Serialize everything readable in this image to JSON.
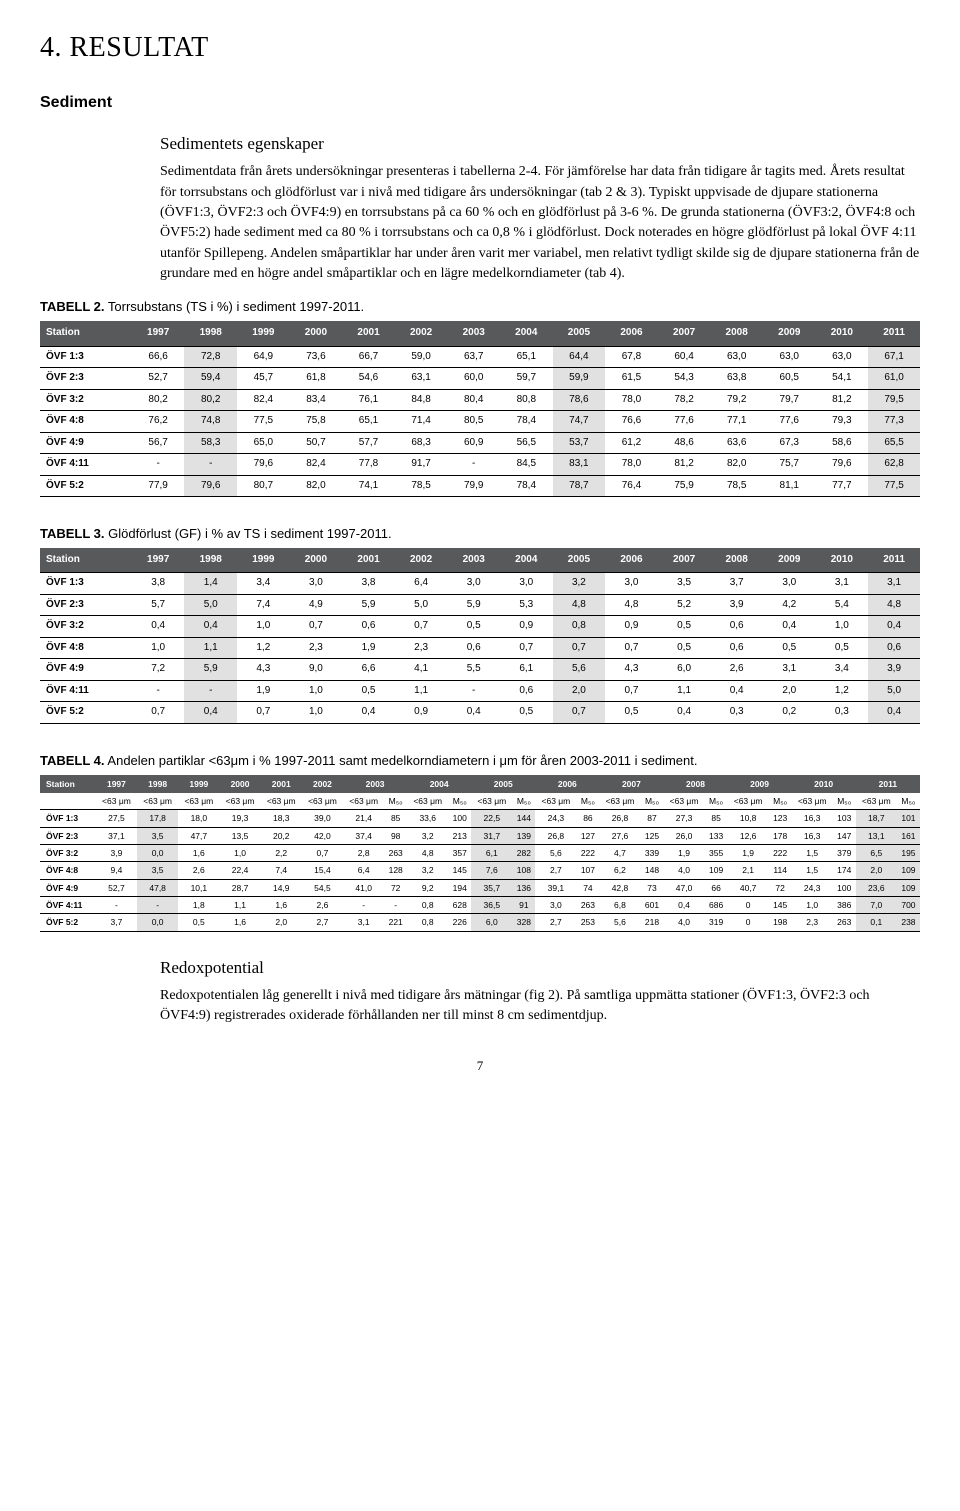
{
  "page_title": "4. RESULTAT",
  "section_sediment": "Sediment",
  "sub_sedimentets": "Sedimentets egenskaper",
  "para1": "Sedimentdata från årets undersökningar presenteras i tabellerna 2-4. För jämförelse har data från tidigare år tagits med. Årets resultat för torrsubstans och glödförlust var i nivå med tidigare års undersökningar (tab 2 & 3). Typiskt uppvisade de djupare stationerna (ÖVF1:3, ÖVF2:3 och ÖVF4:9) en torrsubstans på ca 60 % och en glödförlust på 3-6 %. De grunda stationerna (ÖVF3:2, ÖVF4:8 och ÖVF5:2) hade sediment med ca 80 % i torrsubstans och ca 0,8 % i glödförlust. Dock noterades en högre glödförlust på lokal ÖVF 4:11 utanför Spillepeng. Andelen småpartiklar har under åren varit mer variabel, men relativt tydligt skilde sig de djupare stationerna från de grundare med en högre andel småpartiklar och en lägre medelkorndiameter (tab 4).",
  "tab2_caption_b": "TABELL 2.",
  "tab2_caption": " Torrsubstans (TS i %) i sediment 1997-2011.",
  "tab3_caption_b": "TABELL 3.",
  "tab3_caption": " Glödförlust (GF) i % av TS i sediment 1997-2011.",
  "tab4_caption_b": "TABELL 4.",
  "tab4_caption": " Andelen partiklar <63μm i % 1997-2011 samt medelkorndiametern i μm för åren 2003-2011 i sediment.",
  "headers_years": [
    "Station",
    "1997",
    "1998",
    "1999",
    "2000",
    "2001",
    "2002",
    "2003",
    "2004",
    "2005",
    "2006",
    "2007",
    "2008",
    "2009",
    "2010",
    "2011"
  ],
  "tab2_rows": [
    [
      "ÖVF 1:3",
      "66,6",
      "72,8",
      "64,9",
      "73,6",
      "66,7",
      "59,0",
      "63,7",
      "65,1",
      "64,4",
      "67,8",
      "60,4",
      "63,0",
      "63,0",
      "63,0",
      "67,1"
    ],
    [
      "ÖVF 2:3",
      "52,7",
      "59,4",
      "45,7",
      "61,8",
      "54,6",
      "63,1",
      "60,0",
      "59,7",
      "59,9",
      "61,5",
      "54,3",
      "63,8",
      "60,5",
      "54,1",
      "61,0"
    ],
    [
      "ÖVF 3:2",
      "80,2",
      "80,2",
      "82,4",
      "83,4",
      "76,1",
      "84,8",
      "80,4",
      "80,8",
      "78,6",
      "78,0",
      "78,2",
      "79,2",
      "79,7",
      "81,2",
      "79,5"
    ],
    [
      "ÖVF 4:8",
      "76,2",
      "74,8",
      "77,5",
      "75,8",
      "65,1",
      "71,4",
      "80,5",
      "78,4",
      "74,7",
      "76,6",
      "77,6",
      "77,1",
      "77,6",
      "79,3",
      "77,3"
    ],
    [
      "ÖVF 4:9",
      "56,7",
      "58,3",
      "65,0",
      "50,7",
      "57,7",
      "68,3",
      "60,9",
      "56,5",
      "53,7",
      "61,2",
      "48,6",
      "63,6",
      "67,3",
      "58,6",
      "65,5"
    ],
    [
      "ÖVF 4:11",
      "-",
      "-",
      "79,6",
      "82,4",
      "77,8",
      "91,7",
      "-",
      "84,5",
      "83,1",
      "78,0",
      "81,2",
      "82,0",
      "75,7",
      "79,6",
      "62,8"
    ],
    [
      "ÖVF 5:2",
      "77,9",
      "79,6",
      "80,7",
      "82,0",
      "74,1",
      "78,5",
      "79,9",
      "78,4",
      "78,7",
      "76,4",
      "75,9",
      "78,5",
      "81,1",
      "77,7",
      "77,5"
    ]
  ],
  "tab3_rows": [
    [
      "ÖVF 1:3",
      "3,8",
      "1,4",
      "3,4",
      "3,0",
      "3,8",
      "6,4",
      "3,0",
      "3,0",
      "3,2",
      "3,0",
      "3,5",
      "3,7",
      "3,0",
      "3,1",
      "3,1"
    ],
    [
      "ÖVF 2:3",
      "5,7",
      "5,0",
      "7,4",
      "4,9",
      "5,9",
      "5,0",
      "5,9",
      "5,3",
      "4,8",
      "4,8",
      "5,2",
      "3,9",
      "4,2",
      "5,4",
      "4,8"
    ],
    [
      "ÖVF 3:2",
      "0,4",
      "0,4",
      "1,0",
      "0,7",
      "0,6",
      "0,7",
      "0,5",
      "0,9",
      "0,8",
      "0,9",
      "0,5",
      "0,6",
      "0,4",
      "1,0",
      "0,4"
    ],
    [
      "ÖVF 4:8",
      "1,0",
      "1,1",
      "1,2",
      "2,3",
      "1,9",
      "2,3",
      "0,6",
      "0,7",
      "0,7",
      "0,7",
      "0,5",
      "0,6",
      "0,5",
      "0,5",
      "0,6"
    ],
    [
      "ÖVF 4:9",
      "7,2",
      "5,9",
      "4,3",
      "9,0",
      "6,6",
      "4,1",
      "5,5",
      "6,1",
      "5,6",
      "4,3",
      "6,0",
      "2,6",
      "3,1",
      "3,4",
      "3,9"
    ],
    [
      "ÖVF 4:11",
      "-",
      "-",
      "1,9",
      "1,0",
      "0,5",
      "1,1",
      "-",
      "0,6",
      "2,0",
      "0,7",
      "1,1",
      "0,4",
      "2,0",
      "1,2",
      "5,0"
    ],
    [
      "ÖVF 5:2",
      "0,7",
      "0,4",
      "0,7",
      "1,0",
      "0,4",
      "0,9",
      "0,4",
      "0,5",
      "0,7",
      "0,5",
      "0,4",
      "0,3",
      "0,2",
      "0,3",
      "0,4"
    ]
  ],
  "tab4_sub1": "<63 μm",
  "tab4_sub2": "M₅₀",
  "tab4_rows": [
    [
      "ÖVF 1:3",
      "27,5",
      "17,8",
      "18,0",
      "19,3",
      "18,3",
      "39,0",
      "21,4",
      "85",
      "33,6",
      "100",
      "22,5",
      "144",
      "24,3",
      "86",
      "26,8",
      "87",
      "27,3",
      "85",
      "10,8",
      "123",
      "16,3",
      "103",
      "18,7",
      "101"
    ],
    [
      "ÖVF 2:3",
      "37,1",
      "3,5",
      "47,7",
      "13,5",
      "20,2",
      "42,0",
      "37,4",
      "98",
      "3,2",
      "213",
      "31,7",
      "139",
      "26,8",
      "127",
      "27,6",
      "125",
      "26,0",
      "133",
      "12,6",
      "178",
      "16,3",
      "147",
      "13,1",
      "161"
    ],
    [
      "ÖVF 3:2",
      "3,9",
      "0,0",
      "1,6",
      "1,0",
      "2,2",
      "0,7",
      "2,8",
      "263",
      "4,8",
      "357",
      "6,1",
      "282",
      "5,6",
      "222",
      "4,7",
      "339",
      "1,9",
      "355",
      "1,9",
      "222",
      "1,5",
      "379",
      "6,5",
      "195"
    ],
    [
      "ÖVF 4:8",
      "9,4",
      "3,5",
      "2,6",
      "22,4",
      "7,4",
      "15,4",
      "6,4",
      "128",
      "3,2",
      "145",
      "7,6",
      "108",
      "2,7",
      "107",
      "6,2",
      "148",
      "4,0",
      "109",
      "2,1",
      "114",
      "1,5",
      "174",
      "2,0",
      "109"
    ],
    [
      "ÖVF 4:9",
      "52,7",
      "47,8",
      "10,1",
      "28,7",
      "14,9",
      "54,5",
      "41,0",
      "72",
      "9,2",
      "194",
      "35,7",
      "136",
      "39,1",
      "74",
      "42,8",
      "73",
      "47,0",
      "66",
      "40,7",
      "72",
      "24,3",
      "100",
      "23,6",
      "109"
    ],
    [
      "ÖVF 4:11",
      "-",
      "-",
      "1,8",
      "1,1",
      "1,6",
      "2,6",
      "-",
      "-",
      "0,8",
      "628",
      "36,5",
      "91",
      "3,0",
      "263",
      "6,8",
      "601",
      "0,4",
      "686",
      "0",
      "145",
      "1,0",
      "386",
      "7,0",
      "700"
    ],
    [
      "ÖVF 5:2",
      "3,7",
      "0,0",
      "0,5",
      "1,6",
      "2,0",
      "2,7",
      "3,1",
      "221",
      "0,8",
      "226",
      "6,0",
      "328",
      "2,7",
      "253",
      "5,6",
      "218",
      "4,0",
      "319",
      "0",
      "198",
      "2,3",
      "263",
      "0,1",
      "238"
    ]
  ],
  "sub_redox": "Redoxpotential",
  "para2": "Redoxpotentialen låg generellt i nivå med tidigare års mätningar (fig 2). På samtliga uppmätta stationer (ÖVF1:3, ÖVF2:3 och ÖVF4:9) registrerades oxiderade förhållanden ner till minst 8 cm sedimentdjup.",
  "page_num": "7",
  "colors": {
    "header_bg": "#58595b",
    "highlight_bg": "#e1e1e1"
  }
}
